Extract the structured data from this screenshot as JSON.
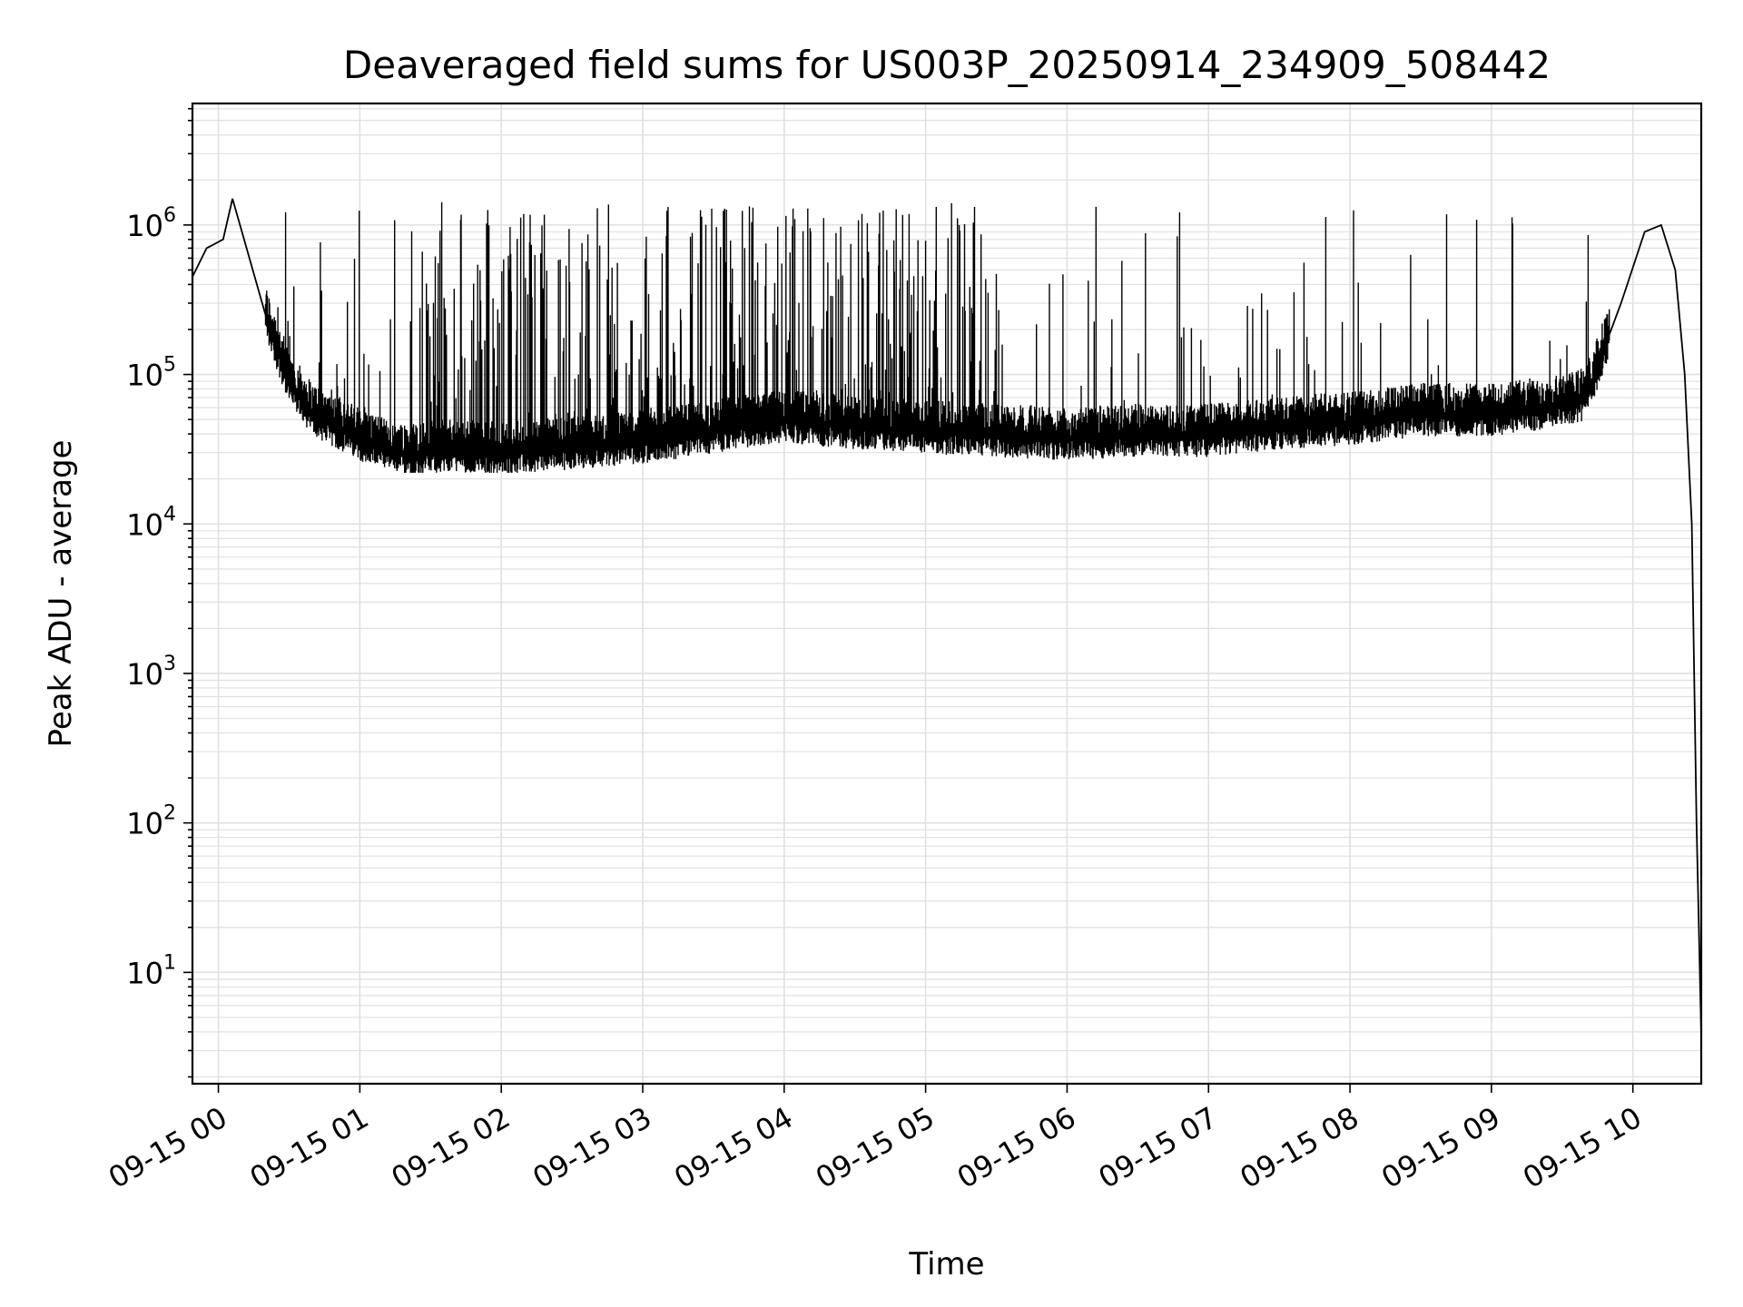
{
  "chart_data": {
    "type": "line",
    "title": "Deaveraged field sums for US003P_20250914_234909_508442",
    "xlabel": "Time",
    "ylabel": "Peak ADU - average",
    "y_scale": "log",
    "ylim": [
      1.8,
      6500000
    ],
    "xlim": [
      "09-14 23:49",
      "09-15 10:29"
    ],
    "x_ticks": [
      "09-15 00",
      "09-15 01",
      "09-15 02",
      "09-15 03",
      "09-15 04",
      "09-15 05",
      "09-15 06",
      "09-15 07",
      "09-15 08",
      "09-15 09",
      "09-15 10"
    ],
    "y_ticks": [
      {
        "base": "10",
        "exp": "1"
      },
      {
        "base": "10",
        "exp": "2"
      },
      {
        "base": "10",
        "exp": "3"
      },
      {
        "base": "10",
        "exp": "4"
      },
      {
        "base": "10",
        "exp": "5"
      },
      {
        "base": "10",
        "exp": "6"
      }
    ],
    "grid": true,
    "line_color": "#000000",
    "grid_color": "#e0e0e0",
    "series": [
      {
        "x": [
          "09-14 23:49",
          "09-14 23:55",
          "09-15 00:02",
          "09-15 00:06",
          "09-15 00:10",
          "09-15 00:20",
          "09-15 00:30",
          "09-15 00:40",
          "09-15 00:50",
          "09-15 01:00",
          "09-15 01:10",
          "09-15 01:20",
          "09-15 01:40",
          "09-15 02:00",
          "09-15 02:20",
          "09-15 02:40",
          "09-15 03:00",
          "09-15 03:20",
          "09-15 03:40",
          "09-15 04:00",
          "09-15 04:30",
          "09-15 05:00",
          "09-15 05:30",
          "09-15 06:00",
          "09-15 06:30",
          "09-15 07:00",
          "09-15 07:30",
          "09-15 08:00",
          "09-15 08:30",
          "09-15 09:00",
          "09-15 09:20",
          "09-15 09:40",
          "09-15 09:55",
          "09-15 10:05",
          "09-15 10:12",
          "09-15 10:18",
          "09-15 10:22",
          "09-15 10:25",
          "09-15 10:27",
          "09-15 10:29"
        ],
        "y": [
          450000,
          700000,
          800000,
          1500000,
          900000,
          250000,
          90000,
          55000,
          45000,
          38000,
          32000,
          30000,
          32000,
          30000,
          32000,
          34000,
          36000,
          40000,
          45000,
          50000,
          45000,
          42000,
          40000,
          38000,
          40000,
          40000,
          45000,
          48000,
          55000,
          55000,
          60000,
          70000,
          300000,
          900000,
          1000000,
          500000,
          100000,
          10000,
          100,
          3.8
        ]
      }
    ],
    "spikes": {
      "min_y": 22000,
      "max_y": 1700000
    }
  }
}
